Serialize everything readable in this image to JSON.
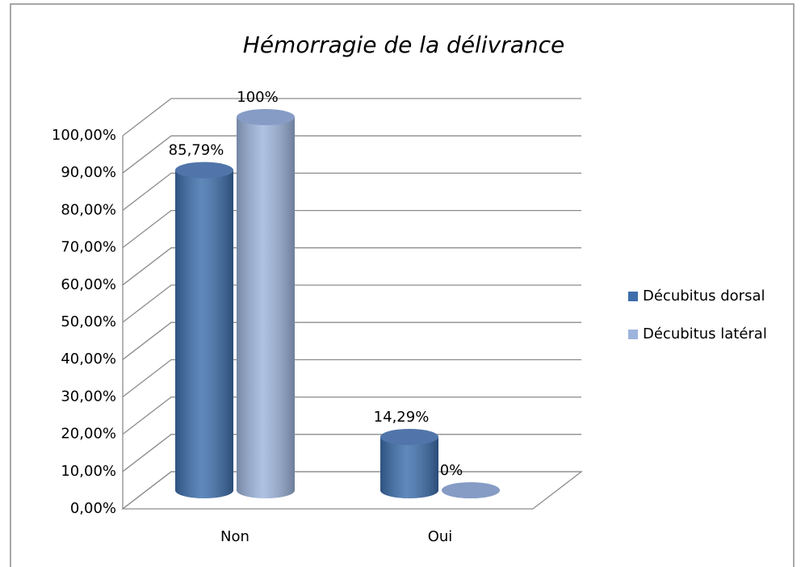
{
  "chart_data": {
    "type": "bar3d",
    "title": "Hémorragie de la délivrance",
    "categories": [
      "Non",
      "Oui"
    ],
    "series": [
      {
        "name": "Décubitus dorsal",
        "color": "#3d6eab",
        "values": [
          85.79,
          14.29
        ],
        "value_labels": [
          "85,79%",
          "14,29%"
        ]
      },
      {
        "name": "Décubitus latéral",
        "color": "#9db4dc",
        "values": [
          100,
          0
        ],
        "value_labels": [
          "100%",
          "0%"
        ]
      }
    ],
    "ylim": [
      0,
      100
    ],
    "yticks": [
      {
        "value": 0,
        "label": "0,00%"
      },
      {
        "value": 10,
        "label": "10,00%"
      },
      {
        "value": 20,
        "label": "20,00%"
      },
      {
        "value": 30,
        "label": "30,00%"
      },
      {
        "value": 40,
        "label": "40,00%"
      },
      {
        "value": 50,
        "label": "50,00%"
      },
      {
        "value": 60,
        "label": "60,00%"
      },
      {
        "value": 70,
        "label": "70,00%"
      },
      {
        "value": 80,
        "label": "80,00%"
      },
      {
        "value": 90,
        "label": "90,00%"
      },
      {
        "value": 100,
        "label": "100,00%"
      }
    ],
    "grid": true,
    "legend": "right"
  }
}
